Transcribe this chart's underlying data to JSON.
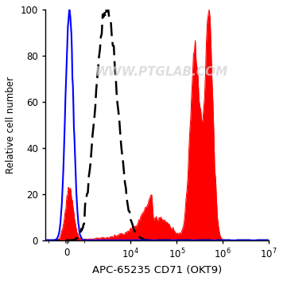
{
  "xlabel": "APC-65235 CD71 (OKT9)",
  "ylabel": "Relative cell number",
  "ylim": [
    0,
    100
  ],
  "yticks": [
    0,
    20,
    40,
    60,
    80,
    100
  ],
  "watermark": "WWW.PTGLAB.COM",
  "background_color": "#ffffff",
  "red_color": "#ff0000",
  "blue_color": "#0000ff",
  "dashed_color": "#000000",
  "linthresh": 1000,
  "linscale": 0.35
}
